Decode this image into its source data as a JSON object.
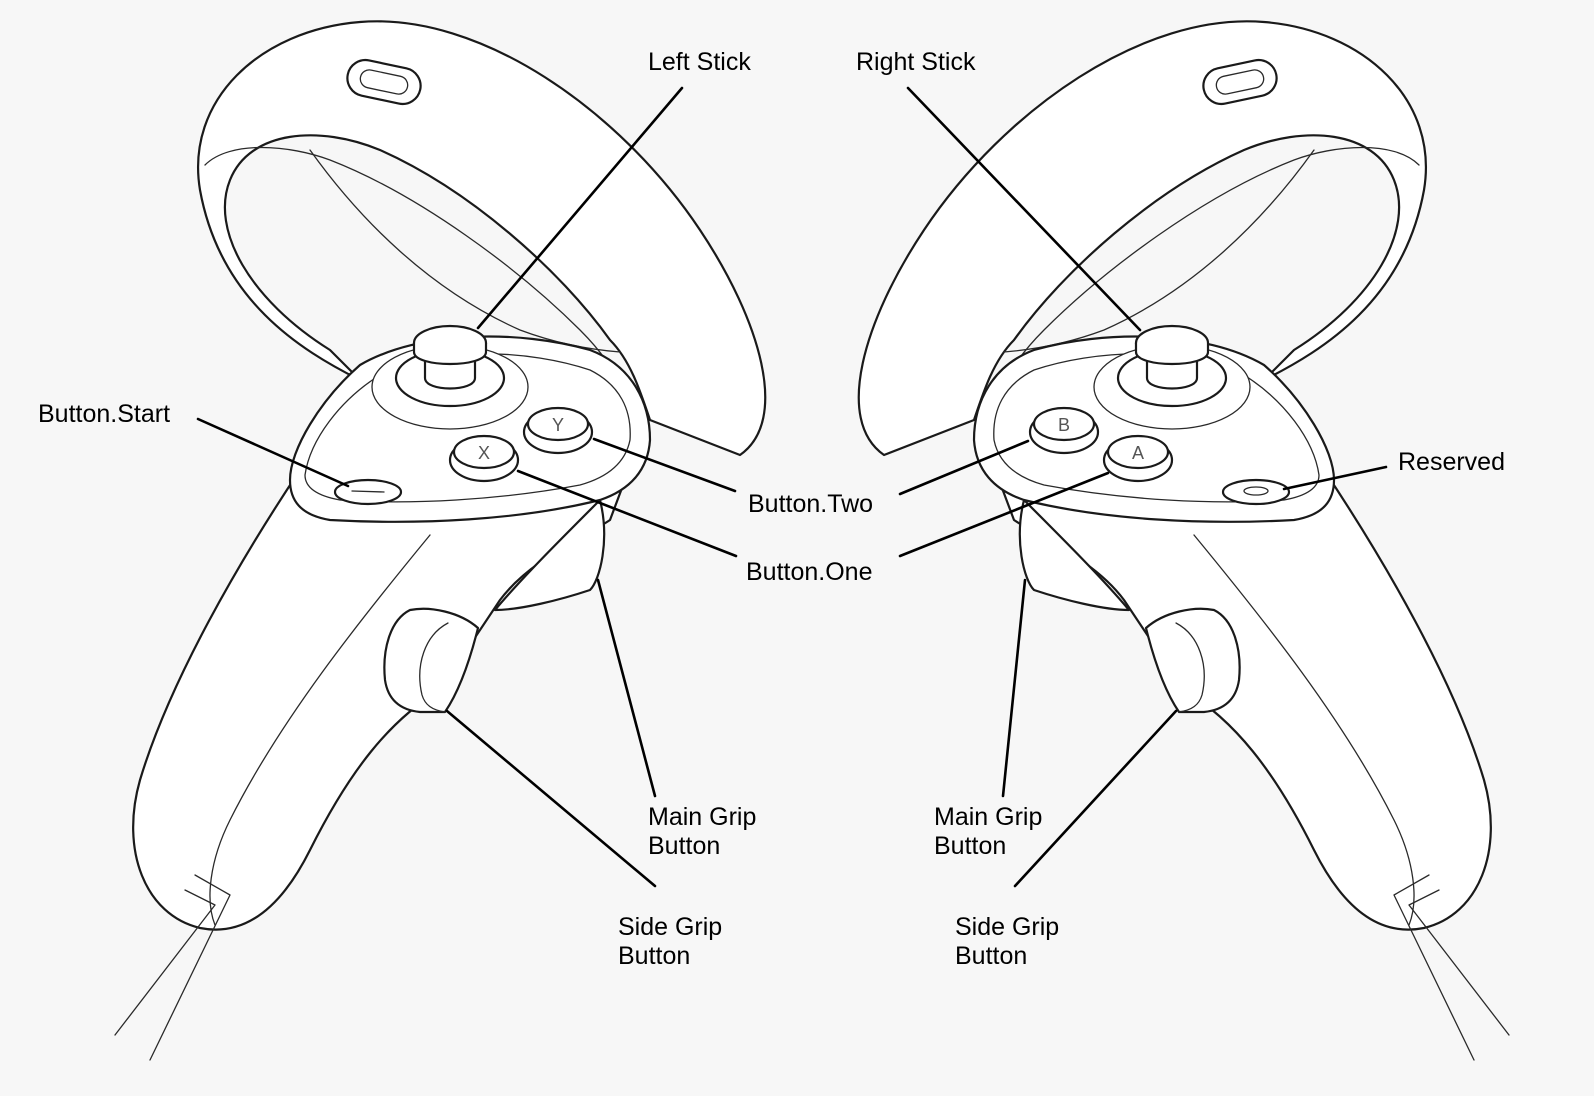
{
  "labels": {
    "left_stick": "Left Stick",
    "right_stick": "Right Stick",
    "button_start": "Button.Start",
    "button_two": "Button.Two",
    "button_one": "Button.One",
    "reserved": "Reserved",
    "left_main_grip": [
      "Main Grip",
      "Button"
    ],
    "right_main_grip": [
      "Main Grip",
      "Button"
    ],
    "left_side_grip": [
      "Side Grip",
      "Button"
    ],
    "right_side_grip": [
      "Side Grip",
      "Button"
    ]
  },
  "button_glyphs": {
    "left_upper": "Y",
    "left_lower": "X",
    "right_upper": "B",
    "right_lower": "A"
  },
  "colors": {
    "background": "#f7f7f7",
    "outline": "#1a1a1a",
    "leader_line": "#000000",
    "label_text": "#000000"
  }
}
